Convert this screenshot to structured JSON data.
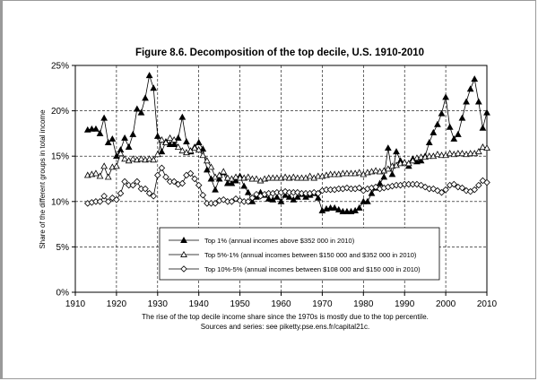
{
  "chart_data": {
    "type": "line",
    "title": "Figure 8.6. Decomposition of the top decile, U.S. 1910-2010",
    "ylabel": "Share of the different groups in total income",
    "xlim": [
      1910,
      2010
    ],
    "ylim": [
      0,
      25
    ],
    "x_ticks": [
      "1910",
      "1920",
      "1930",
      "1940",
      "1950",
      "1960",
      "1970",
      "1980",
      "1990",
      "2000",
      "2010"
    ],
    "y_ticks": [
      "0%",
      "5%",
      "10%",
      "15%",
      "20%",
      "25%"
    ],
    "grid": "dashed vertical and horizontal",
    "legend_position": "bottom-center",
    "notes": [
      "The rise of the top decile income share since the 1970s is mostly due to the top percentile.",
      "Sources and series: see piketty.pse.ens.fr/capital21c."
    ],
    "series": [
      {
        "name": "Top 1% (annual incomes above $352 000 in 2010)",
        "marker": "filled-triangle",
        "x": [
          1913,
          1914,
          1915,
          1916,
          1917,
          1918,
          1919,
          1920,
          1921,
          1922,
          1923,
          1924,
          1925,
          1926,
          1927,
          1928,
          1929,
          1930,
          1931,
          1932,
          1933,
          1934,
          1935,
          1936,
          1937,
          1938,
          1939,
          1940,
          1941,
          1942,
          1943,
          1944,
          1945,
          1946,
          1947,
          1948,
          1949,
          1950,
          1951,
          1952,
          1953,
          1954,
          1955,
          1956,
          1957,
          1958,
          1959,
          1960,
          1961,
          1962,
          1963,
          1964,
          1965,
          1966,
          1967,
          1968,
          1969,
          1970,
          1971,
          1972,
          1973,
          1974,
          1975,
          1976,
          1977,
          1978,
          1979,
          1980,
          1981,
          1982,
          1983,
          1984,
          1985,
          1986,
          1987,
          1988,
          1989,
          1990,
          1991,
          1992,
          1993,
          1994,
          1995,
          1996,
          1997,
          1998,
          1999,
          2000,
          2001,
          2002,
          2003,
          2004,
          2005,
          2006,
          2007,
          2008,
          2009,
          2010
        ],
        "values": [
          17.9,
          18.0,
          18.0,
          17.5,
          19.2,
          16.5,
          16.9,
          15.0,
          15.7,
          17.0,
          16.0,
          17.4,
          20.2,
          19.8,
          21.4,
          23.9,
          22.5,
          17.2,
          15.5,
          16.6,
          16.3,
          16.3,
          17.0,
          19.3,
          16.6,
          15.5,
          16.0,
          16.5,
          15.8,
          13.5,
          12.5,
          11.3,
          12.5,
          13.2,
          12.0,
          12.0,
          12.3,
          12.8,
          11.7,
          11.0,
          10.0,
          10.5,
          11.0,
          10.7,
          10.3,
          10.2,
          10.5,
          10.0,
          10.7,
          10.5,
          10.2,
          10.5,
          10.8,
          10.5,
          10.7,
          10.9,
          10.4,
          9.0,
          9.2,
          9.3,
          9.3,
          9.1,
          8.9,
          8.9,
          8.9,
          9.0,
          9.3,
          10.0,
          10.0,
          10.9,
          11.5,
          12.0,
          12.7,
          15.9,
          13.0,
          15.5,
          14.5,
          14.3,
          13.9,
          14.7,
          14.4,
          14.5,
          15.0,
          16.5,
          17.6,
          18.5,
          19.7,
          21.5,
          18.2,
          16.9,
          17.4,
          19.2,
          21.0,
          22.4,
          23.5,
          21.0,
          18.1,
          19.8
        ]
      },
      {
        "name": "Top 5%-1% (annual incomes between $150 000 and $352 000 in 2010)",
        "marker": "hollow-triangle",
        "x": [
          1913,
          1914,
          1915,
          1916,
          1917,
          1918,
          1919,
          1920,
          1921,
          1922,
          1923,
          1924,
          1925,
          1926,
          1927,
          1928,
          1929,
          1930,
          1931,
          1932,
          1933,
          1934,
          1935,
          1936,
          1937,
          1938,
          1939,
          1940,
          1941,
          1942,
          1943,
          1944,
          1945,
          1946,
          1947,
          1948,
          1949,
          1950,
          1951,
          1952,
          1953,
          1954,
          1955,
          1956,
          1957,
          1958,
          1959,
          1960,
          1961,
          1962,
          1963,
          1964,
          1965,
          1966,
          1967,
          1968,
          1969,
          1970,
          1971,
          1972,
          1973,
          1974,
          1975,
          1976,
          1977,
          1978,
          1979,
          1980,
          1981,
          1982,
          1983,
          1984,
          1985,
          1986,
          1987,
          1988,
          1989,
          1990,
          1991,
          1992,
          1993,
          1994,
          1995,
          1996,
          1997,
          1998,
          1999,
          2000,
          2001,
          2002,
          2003,
          2004,
          2005,
          2006,
          2007,
          2008,
          2009,
          2010
        ],
        "values": [
          12.9,
          13.0,
          13.1,
          12.8,
          13.9,
          12.7,
          13.8,
          13.9,
          15.3,
          14.7,
          14.5,
          14.7,
          14.6,
          14.7,
          14.6,
          14.7,
          14.6,
          15.2,
          16.8,
          16.5,
          17.0,
          16.8,
          16.0,
          15.6,
          15.4,
          15.6,
          15.9,
          15.7,
          15.1,
          14.5,
          13.8,
          12.7,
          12.9,
          13.3,
          12.6,
          12.5,
          12.7,
          12.6,
          12.6,
          12.7,
          12.5,
          12.5,
          12.3,
          12.5,
          12.6,
          12.6,
          12.6,
          12.6,
          12.7,
          12.6,
          12.7,
          12.6,
          12.6,
          12.6,
          12.8,
          12.6,
          12.8,
          12.8,
          12.9,
          13.0,
          13.0,
          13.0,
          13.1,
          13.1,
          13.1,
          13.1,
          13.2,
          13.0,
          13.2,
          13.3,
          13.4,
          13.3,
          13.4,
          13.6,
          13.9,
          14.0,
          14.2,
          14.3,
          14.2,
          14.5,
          14.8,
          14.9,
          14.9,
          15.0,
          15.0,
          15.2,
          15.1,
          15.1,
          15.3,
          15.2,
          15.3,
          15.3,
          15.2,
          15.3,
          15.3,
          15.5,
          16.0,
          15.9
        ]
      },
      {
        "name": "Top 10%-5% (annual incomes between $108 000 and $150 000 in 2010)",
        "marker": "hollow-diamond",
        "x": [
          1913,
          1914,
          1915,
          1916,
          1917,
          1918,
          1919,
          1920,
          1921,
          1922,
          1923,
          1924,
          1925,
          1926,
          1927,
          1928,
          1929,
          1930,
          1931,
          1932,
          1933,
          1934,
          1935,
          1936,
          1937,
          1938,
          1939,
          1940,
          1941,
          1942,
          1943,
          1944,
          1945,
          1946,
          1947,
          1948,
          1949,
          1950,
          1951,
          1952,
          1953,
          1954,
          1955,
          1956,
          1957,
          1958,
          1959,
          1960,
          1961,
          1962,
          1963,
          1964,
          1965,
          1966,
          1967,
          1968,
          1969,
          1970,
          1971,
          1972,
          1973,
          1974,
          1975,
          1976,
          1977,
          1978,
          1979,
          1980,
          1981,
          1982,
          1983,
          1984,
          1985,
          1986,
          1987,
          1988,
          1989,
          1990,
          1991,
          1992,
          1993,
          1994,
          1995,
          1996,
          1997,
          1998,
          1999,
          2000,
          2001,
          2002,
          2003,
          2004,
          2005,
          2006,
          2007,
          2008,
          2009,
          2010
        ],
        "values": [
          9.8,
          9.9,
          10.0,
          10.0,
          10.6,
          10.0,
          10.4,
          10.2,
          10.9,
          12.2,
          11.8,
          11.8,
          12.2,
          11.4,
          11.4,
          10.9,
          10.6,
          12.9,
          13.7,
          12.7,
          12.2,
          12.2,
          11.9,
          12.0,
          12.9,
          13.1,
          12.5,
          11.8,
          10.7,
          9.8,
          9.8,
          9.8,
          10.1,
          10.2,
          10.0,
          10.0,
          10.3,
          10.1,
          10.0,
          10.0,
          10.4,
          10.8,
          10.6,
          10.8,
          10.9,
          10.9,
          11.0,
          11.0,
          11.1,
          11.0,
          11.0,
          11.0,
          10.9,
          10.9,
          10.9,
          11.0,
          10.9,
          11.2,
          11.3,
          11.3,
          11.3,
          11.4,
          11.4,
          11.5,
          11.4,
          11.4,
          11.5,
          11.2,
          11.4,
          11.5,
          11.6,
          11.4,
          11.5,
          11.6,
          11.7,
          11.8,
          11.8,
          11.9,
          11.9,
          11.9,
          11.9,
          11.8,
          11.6,
          11.4,
          11.4,
          11.2,
          11.0,
          11.3,
          11.8,
          11.9,
          11.6,
          11.5,
          11.2,
          11.1,
          11.3,
          11.8,
          12.3,
          12.1
        ]
      }
    ]
  }
}
